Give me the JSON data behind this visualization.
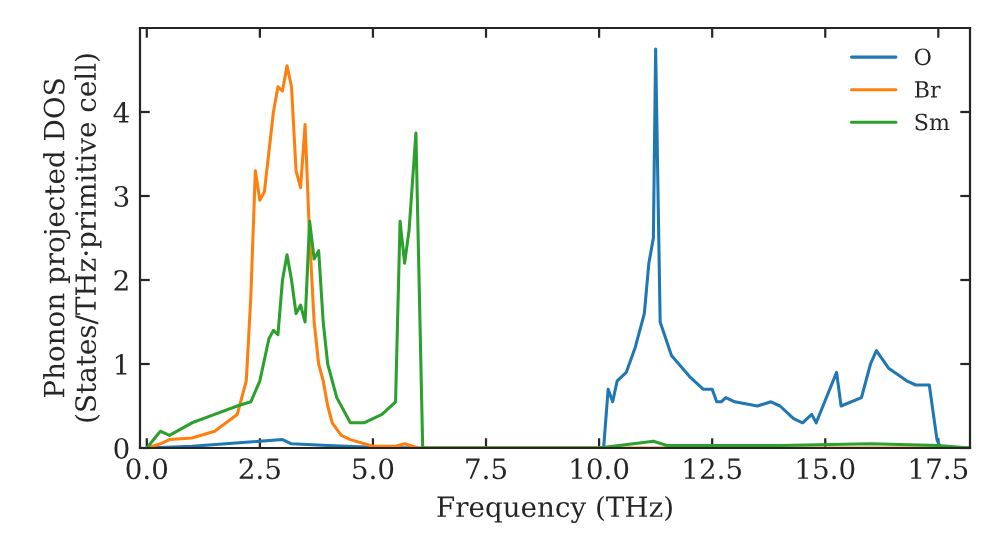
{
  "chart_data": {
    "type": "line",
    "xlabel": "Frequency (THz)",
    "ylabel": "Phonon projected DOS\n(States/THz·primitive cell)",
    "xlim": [
      -0.15,
      18.2
    ],
    "ylim": [
      0,
      5
    ],
    "xticks": [
      {
        "value": 0,
        "label": "0.0"
      },
      2.5,
      {
        "value": 5,
        "label": "5.0"
      },
      7.5,
      {
        "value": 10,
        "label": "10.0"
      },
      12.5,
      {
        "value": 15,
        "label": "15.0"
      },
      17.5
    ],
    "yticks": [
      0,
      1,
      2,
      3,
      4
    ],
    "grid": false,
    "legend": "top right",
    "marker": "none",
    "line_style": "solid",
    "series": [
      {
        "name": "O",
        "color": "#1f77b4",
        "x": [
          0,
          1,
          2.5,
          3,
          3.2,
          4,
          5,
          6,
          10.1,
          10.2,
          10.3,
          10.4,
          10.6,
          10.8,
          11.0,
          11.1,
          11.2,
          11.25,
          11.35,
          11.6,
          12.0,
          12.3,
          12.5,
          12.6,
          12.7,
          12.8,
          13.0,
          13.5,
          13.8,
          14.0,
          14.3,
          14.5,
          14.7,
          14.8,
          15.25,
          15.35,
          15.8,
          16.0,
          16.13,
          16.4,
          16.8,
          17.0,
          17.3,
          17.47,
          17.55,
          18.2
        ],
        "values": [
          0,
          0.02,
          0.08,
          0.1,
          0.05,
          0.03,
          0.01,
          0,
          0,
          0.7,
          0.55,
          0.8,
          0.9,
          1.2,
          1.6,
          2.2,
          2.5,
          4.75,
          1.5,
          1.1,
          0.85,
          0.7,
          0.7,
          0.55,
          0.55,
          0.6,
          0.55,
          0.5,
          0.55,
          0.5,
          0.35,
          0.3,
          0.4,
          0.3,
          0.9,
          0.5,
          0.6,
          1.0,
          1.16,
          0.95,
          0.8,
          0.75,
          0.75,
          0.1,
          0,
          0
        ]
      },
      {
        "name": "Br",
        "color": "#ff7f0e",
        "x": [
          0,
          0.3,
          0.5,
          1,
          1.5,
          2.0,
          2.2,
          2.3,
          2.4,
          2.5,
          2.6,
          2.8,
          2.9,
          3.0,
          3.1,
          3.2,
          3.3,
          3.4,
          3.5,
          3.6,
          3.7,
          3.8,
          3.9,
          4.0,
          4.1,
          4.3,
          4.5,
          5.0,
          5.5,
          5.7,
          6.0,
          18.2
        ],
        "values": [
          0,
          0.05,
          0.1,
          0.12,
          0.2,
          0.4,
          0.8,
          1.8,
          3.3,
          2.95,
          3.05,
          4.0,
          4.3,
          4.25,
          4.55,
          4.3,
          3.3,
          3.1,
          3.85,
          2.5,
          1.5,
          1.0,
          0.8,
          0.5,
          0.3,
          0.15,
          0.1,
          0.02,
          0.02,
          0.05,
          0,
          0
        ]
      },
      {
        "name": "Sm",
        "color": "#2ca02c",
        "x": [
          0,
          0.3,
          0.5,
          1.0,
          1.5,
          2.0,
          2.3,
          2.5,
          2.7,
          2.8,
          2.9,
          3.0,
          3.1,
          3.2,
          3.3,
          3.4,
          3.5,
          3.6,
          3.7,
          3.8,
          3.9,
          4.0,
          4.2,
          4.5,
          4.8,
          5.2,
          5.5,
          5.6,
          5.7,
          5.8,
          5.95,
          6.1,
          10.0,
          11.2,
          11.5,
          14.0,
          16.0,
          17.5,
          18.2
        ],
        "values": [
          0,
          0.2,
          0.15,
          0.3,
          0.4,
          0.5,
          0.55,
          0.8,
          1.3,
          1.4,
          1.35,
          2.0,
          2.3,
          2.0,
          1.6,
          1.7,
          1.5,
          2.7,
          2.25,
          2.35,
          1.5,
          1.0,
          0.6,
          0.3,
          0.3,
          0.4,
          0.55,
          2.7,
          2.2,
          2.6,
          3.75,
          0,
          0,
          0.08,
          0.03,
          0.03,
          0.05,
          0.03,
          0
        ]
      }
    ]
  }
}
